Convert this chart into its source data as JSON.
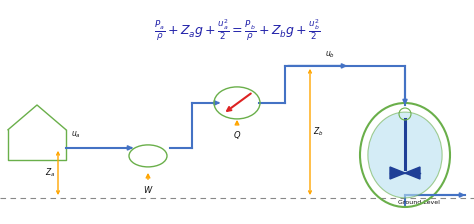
{
  "formula": "$\\frac{P_a}{\\rho} + Z_a g + \\frac{u_a^2}{2} = \\frac{P_b}{\\rho} + Z_b g + \\frac{u_b^2}{2}$",
  "formula_fontsize": 9,
  "formula_color": "#2222AA",
  "colors": {
    "pipe": "#4472C4",
    "house": "#6AAF4A",
    "pump_ellipse": "#6AAF4A",
    "tank_outer": "#6AAF4A",
    "tank_inner": "#B8E0F0",
    "tank_turbine": "#1F3F97",
    "orange": "#FFA500",
    "red": "#DD2222",
    "ground": "#888888",
    "text": "#111111"
  },
  "background": "#FFFFFF"
}
